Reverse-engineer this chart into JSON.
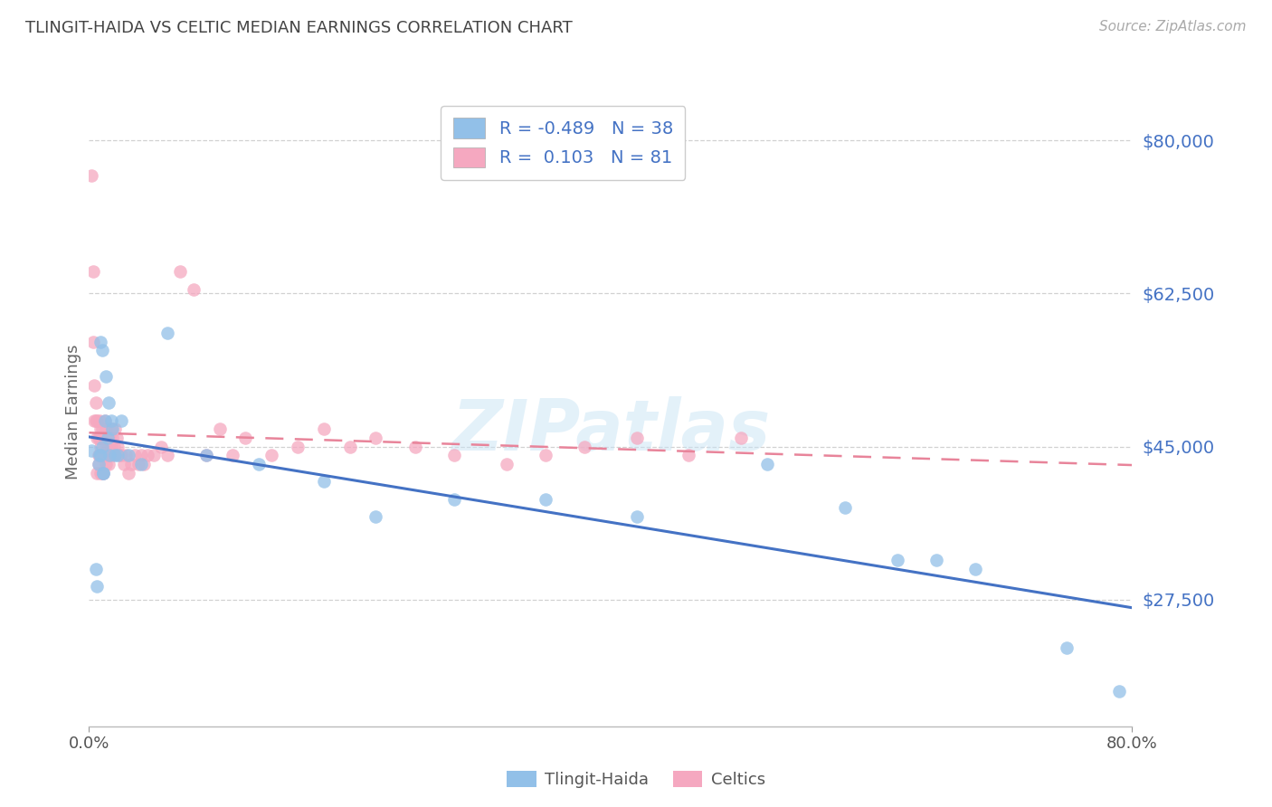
{
  "title": "TLINGIT-HAIDA VS CELTIC MEDIAN EARNINGS CORRELATION CHART",
  "source": "Source: ZipAtlas.com",
  "ylabel": "Median Earnings",
  "yticks": [
    27500,
    45000,
    62500,
    80000
  ],
  "ytick_labels": [
    "$27,500",
    "$45,000",
    "$62,500",
    "$80,000"
  ],
  "xlim": [
    0.0,
    0.8
  ],
  "ylim": [
    13000,
    85000
  ],
  "legend_labels_bottom": [
    "Tlingit-Haida",
    "Celtics"
  ],
  "tlingit_color": "#92c0e8",
  "celtic_color": "#f5a8c0",
  "tlingit_line_color": "#4472c4",
  "celtic_line_color": "#e8849a",
  "watermark": "ZIPatlas",
  "background_color": "#ffffff",
  "title_color": "#555555",
  "axis_label_color": "#4472c4",
  "tlingit_R": -0.489,
  "tlingit_N": 38,
  "celtic_R": 0.103,
  "celtic_N": 81,
  "tlingit_x": [
    0.002,
    0.005,
    0.006,
    0.007,
    0.008,
    0.009,
    0.009,
    0.01,
    0.01,
    0.011,
    0.011,
    0.012,
    0.013,
    0.014,
    0.015,
    0.016,
    0.017,
    0.018,
    0.02,
    0.022,
    0.025,
    0.03,
    0.04,
    0.06,
    0.09,
    0.13,
    0.18,
    0.22,
    0.28,
    0.35,
    0.42,
    0.52,
    0.58,
    0.62,
    0.65,
    0.68,
    0.75,
    0.79
  ],
  "tlingit_y": [
    44500,
    31000,
    29000,
    43000,
    44000,
    44000,
    57000,
    56000,
    45000,
    42000,
    42000,
    48000,
    53000,
    46000,
    50000,
    44000,
    48000,
    47000,
    44000,
    44000,
    48000,
    44000,
    43000,
    58000,
    44000,
    43000,
    41000,
    37000,
    39000,
    39000,
    37000,
    43000,
    38000,
    32000,
    32000,
    31000,
    22000,
    17000
  ],
  "celtic_x": [
    0.002,
    0.003,
    0.003,
    0.004,
    0.004,
    0.005,
    0.005,
    0.006,
    0.006,
    0.006,
    0.007,
    0.007,
    0.007,
    0.008,
    0.008,
    0.008,
    0.009,
    0.009,
    0.009,
    0.009,
    0.01,
    0.01,
    0.01,
    0.01,
    0.011,
    0.011,
    0.011,
    0.012,
    0.012,
    0.012,
    0.013,
    0.013,
    0.013,
    0.014,
    0.014,
    0.015,
    0.015,
    0.015,
    0.016,
    0.016,
    0.017,
    0.017,
    0.018,
    0.018,
    0.019,
    0.02,
    0.021,
    0.022,
    0.023,
    0.025,
    0.027,
    0.028,
    0.03,
    0.032,
    0.035,
    0.038,
    0.04,
    0.042,
    0.045,
    0.05,
    0.055,
    0.06,
    0.07,
    0.08,
    0.09,
    0.1,
    0.11,
    0.12,
    0.14,
    0.16,
    0.18,
    0.2,
    0.22,
    0.25,
    0.28,
    0.32,
    0.35,
    0.38,
    0.42,
    0.46,
    0.5
  ],
  "celtic_y": [
    76000,
    65000,
    57000,
    52000,
    48000,
    50000,
    48000,
    48000,
    46000,
    42000,
    46000,
    44000,
    43000,
    48000,
    46000,
    44000,
    47000,
    45000,
    44000,
    42000,
    47000,
    46000,
    44000,
    42000,
    46000,
    44000,
    42000,
    48000,
    46000,
    44000,
    47000,
    45000,
    43000,
    46000,
    44000,
    46000,
    45000,
    43000,
    46000,
    44000,
    47000,
    45000,
    46000,
    44000,
    45000,
    47000,
    46000,
    45000,
    44000,
    44000,
    43000,
    44000,
    42000,
    43000,
    44000,
    43000,
    44000,
    43000,
    44000,
    44000,
    45000,
    44000,
    65000,
    63000,
    44000,
    47000,
    44000,
    46000,
    44000,
    45000,
    47000,
    45000,
    46000,
    45000,
    44000,
    43000,
    44000,
    45000,
    46000,
    44000,
    46000
  ]
}
